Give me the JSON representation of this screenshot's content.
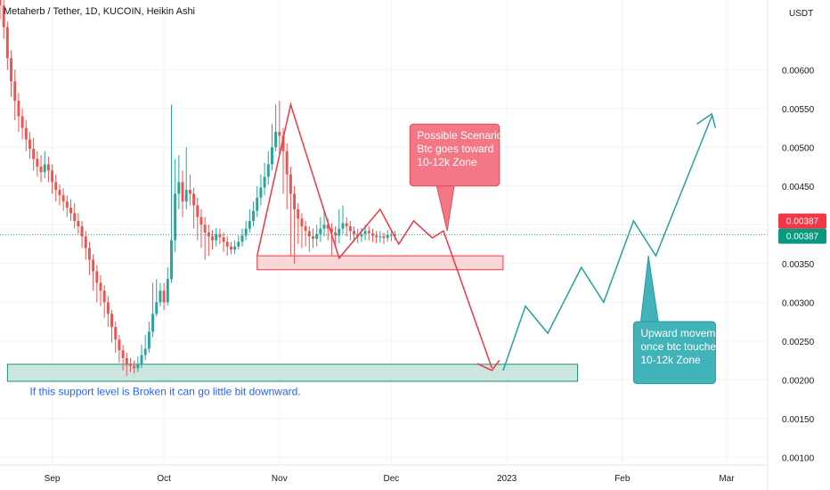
{
  "chart_data": {
    "type": "candlestick",
    "title": "Metaherb / Tether, 1D, KUCOIN, Heikin Ashi",
    "currency": "USDT",
    "ylim": [
      0.0009,
      0.0069
    ],
    "y_ticks": [
      "0.00100",
      "0.00150",
      "0.00200",
      "0.00250",
      "0.00300",
      "0.00350",
      "0.00400",
      "0.00450",
      "0.00500",
      "0.00550",
      "0.00600"
    ],
    "x_ticks": [
      {
        "label": "Sep",
        "date": "2022-09-01"
      },
      {
        "label": "Oct",
        "date": "2022-10-01"
      },
      {
        "label": "Nov",
        "date": "2022-11-01"
      },
      {
        "label": "Dec",
        "date": "2022-12-01"
      },
      {
        "label": "2023",
        "date": "2023-01-01"
      },
      {
        "label": "Feb",
        "date": "2023-02-01"
      },
      {
        "label": "Mar",
        "date": "2023-03-01"
      }
    ],
    "x_range": [
      "2022-08-18",
      "2023-03-12"
    ],
    "last_price": {
      "value": 0.00387,
      "label": "0.00387",
      "label2": "0.00387"
    },
    "candles_start": "2022-08-18",
    "candles": [
      [
        0.00692,
        0.00683,
        0.00705,
        0.00665
      ],
      [
        0.00683,
        0.00655,
        0.0069,
        0.0064
      ],
      [
        0.00655,
        0.00615,
        0.00662,
        0.006
      ],
      [
        0.00615,
        0.00585,
        0.00625,
        0.00565
      ],
      [
        0.00585,
        0.0056,
        0.006,
        0.00535
      ],
      [
        0.0056,
        0.0054,
        0.0057,
        0.0052
      ],
      [
        0.0054,
        0.00525,
        0.0055,
        0.0051
      ],
      [
        0.00525,
        0.0051,
        0.00535,
        0.00495
      ],
      [
        0.0051,
        0.00498,
        0.0052,
        0.00485
      ],
      [
        0.00498,
        0.00485,
        0.00512,
        0.0047
      ],
      [
        0.00485,
        0.00475,
        0.00495,
        0.00462
      ],
      [
        0.00475,
        0.00468,
        0.0049,
        0.00455
      ],
      [
        0.00468,
        0.00478,
        0.00495,
        0.0046
      ],
      [
        0.00478,
        0.0047,
        0.00488,
        0.00455
      ],
      [
        0.0047,
        0.00455,
        0.00478,
        0.0044
      ],
      [
        0.00455,
        0.00445,
        0.00465,
        0.0043
      ],
      [
        0.00445,
        0.00438,
        0.00452,
        0.00425
      ],
      [
        0.00438,
        0.0043,
        0.00447,
        0.00418
      ],
      [
        0.0043,
        0.00422,
        0.00438,
        0.0041
      ],
      [
        0.00422,
        0.00415,
        0.00433,
        0.00405
      ],
      [
        0.00415,
        0.00405,
        0.00428,
        0.00395
      ],
      [
        0.00405,
        0.00398,
        0.00415,
        0.00388
      ],
      [
        0.00398,
        0.00385,
        0.00405,
        0.0037
      ],
      [
        0.00385,
        0.0037,
        0.00392,
        0.00355
      ],
      [
        0.0037,
        0.00355,
        0.00378,
        0.00335
      ],
      [
        0.00355,
        0.0034,
        0.00362,
        0.00315
      ],
      [
        0.0034,
        0.00325,
        0.00348,
        0.003
      ],
      [
        0.00325,
        0.00315,
        0.00335,
        0.00295
      ],
      [
        0.00315,
        0.003,
        0.00322,
        0.0028
      ],
      [
        0.003,
        0.00285,
        0.00308,
        0.00268
      ],
      [
        0.00285,
        0.00268,
        0.0029,
        0.00248
      ],
      [
        0.00268,
        0.00252,
        0.00275,
        0.00235
      ],
      [
        0.00252,
        0.00238,
        0.00258,
        0.00222
      ],
      [
        0.00238,
        0.00228,
        0.00245,
        0.00212
      ],
      [
        0.00228,
        0.0022,
        0.00235,
        0.00205
      ],
      [
        0.0022,
        0.00218,
        0.00228,
        0.0021
      ],
      [
        0.00218,
        0.00215,
        0.00225,
        0.00208
      ],
      [
        0.00215,
        0.0022,
        0.0023,
        0.0021
      ],
      [
        0.0022,
        0.00232,
        0.00245,
        0.00215
      ],
      [
        0.00232,
        0.0024,
        0.00258,
        0.00225
      ],
      [
        0.0024,
        0.00262,
        0.00275,
        0.00235
      ],
      [
        0.00262,
        0.00285,
        0.00325,
        0.00255
      ],
      [
        0.00285,
        0.003,
        0.0033,
        0.00282
      ],
      [
        0.003,
        0.00315,
        0.00325,
        0.00295
      ],
      [
        0.00315,
        0.003,
        0.00325,
        0.0029
      ],
      [
        0.003,
        0.0033,
        0.00345,
        0.00296
      ],
      [
        0.0033,
        0.0038,
        0.00555,
        0.00325
      ],
      [
        0.0038,
        0.0044,
        0.00485,
        0.00365
      ],
      [
        0.0044,
        0.00455,
        0.0049,
        0.0042
      ],
      [
        0.00455,
        0.0043,
        0.0047,
        0.0041
      ],
      [
        0.0043,
        0.00445,
        0.005,
        0.0042
      ],
      [
        0.00445,
        0.0044,
        0.00465,
        0.00425
      ],
      [
        0.0044,
        0.00425,
        0.00448,
        0.00395
      ],
      [
        0.00425,
        0.0041,
        0.00435,
        0.0038
      ],
      [
        0.0041,
        0.004,
        0.0042,
        0.0037
      ],
      [
        0.004,
        0.0039,
        0.0041,
        0.00355
      ],
      [
        0.0039,
        0.00385,
        0.004,
        0.0036
      ],
      [
        0.00385,
        0.0038,
        0.00393,
        0.00368
      ],
      [
        0.0038,
        0.00388,
        0.00396,
        0.00372
      ],
      [
        0.00388,
        0.00384,
        0.00395,
        0.00375
      ],
      [
        0.00384,
        0.00378,
        0.0039,
        0.00365
      ],
      [
        0.00378,
        0.00372,
        0.00385,
        0.0036
      ],
      [
        0.00372,
        0.00368,
        0.00378,
        0.00362
      ],
      [
        0.00368,
        0.00372,
        0.0038,
        0.00362
      ],
      [
        0.00372,
        0.00378,
        0.00386,
        0.00368
      ],
      [
        0.00378,
        0.00386,
        0.00395,
        0.00372
      ],
      [
        0.00386,
        0.00395,
        0.00405,
        0.0038
      ],
      [
        0.00395,
        0.00405,
        0.0042,
        0.0039
      ],
      [
        0.00405,
        0.00418,
        0.0043,
        0.00398
      ],
      [
        0.00418,
        0.00435,
        0.0045,
        0.0041
      ],
      [
        0.00435,
        0.00448,
        0.00465,
        0.00425
      ],
      [
        0.00448,
        0.00462,
        0.0048,
        0.00438
      ],
      [
        0.00462,
        0.00478,
        0.00495,
        0.00452
      ],
      [
        0.00478,
        0.005,
        0.0053,
        0.0047
      ],
      [
        0.005,
        0.0052,
        0.00555,
        0.00495
      ],
      [
        0.0052,
        0.00515,
        0.0056,
        0.0049
      ],
      [
        0.00515,
        0.00495,
        0.00525,
        0.0044
      ],
      [
        0.00495,
        0.00465,
        0.00505,
        0.0042
      ],
      [
        0.00465,
        0.0044,
        0.00475,
        0.0036
      ],
      [
        0.0044,
        0.0042,
        0.0045,
        0.0035
      ],
      [
        0.0042,
        0.00408,
        0.00428,
        0.00375
      ],
      [
        0.00408,
        0.00398,
        0.00415,
        0.0037
      ],
      [
        0.00398,
        0.00392,
        0.00405,
        0.00372
      ],
      [
        0.00392,
        0.00385,
        0.00398,
        0.00365
      ],
      [
        0.00385,
        0.00382,
        0.00395,
        0.0037
      ],
      [
        0.00382,
        0.00388,
        0.004,
        0.00372
      ],
      [
        0.00388,
        0.00395,
        0.0041,
        0.00378
      ],
      [
        0.00395,
        0.004,
        0.0042,
        0.00385
      ],
      [
        0.004,
        0.00395,
        0.00408,
        0.0038
      ],
      [
        0.00395,
        0.0039,
        0.00402,
        0.0036
      ],
      [
        0.0039,
        0.00386,
        0.00398,
        0.00372
      ],
      [
        0.00386,
        0.00395,
        0.0042,
        0.00376
      ],
      [
        0.00395,
        0.00402,
        0.00425,
        0.00388
      ],
      [
        0.00402,
        0.00398,
        0.0041,
        0.00385
      ],
      [
        0.00398,
        0.00392,
        0.00405,
        0.0038
      ],
      [
        0.00392,
        0.00388,
        0.00398,
        0.00378
      ],
      [
        0.00388,
        0.00385,
        0.00395,
        0.00376
      ],
      [
        0.00385,
        0.00388,
        0.00396,
        0.00378
      ],
      [
        0.00388,
        0.00392,
        0.004,
        0.0038
      ],
      [
        0.00392,
        0.00389,
        0.00398,
        0.0038
      ],
      [
        0.00389,
        0.00386,
        0.00395,
        0.00378
      ],
      [
        0.00386,
        0.00384,
        0.00392,
        0.00376
      ],
      [
        0.00384,
        0.00385,
        0.00392,
        0.00377
      ],
      [
        0.00385,
        0.00383,
        0.0039,
        0.00375
      ],
      [
        0.00383,
        0.00387,
        0.00393,
        0.00378
      ],
      [
        0.00387,
        0.00386,
        0.00392,
        0.00379
      ],
      [
        0.00386,
        0.00387,
        0.00392,
        0.0038
      ]
    ],
    "zones": [
      {
        "name": "resistance",
        "date_from": "2022-10-26",
        "date_to": "2022-12-31",
        "y_from": 0.00342,
        "y_to": 0.0036,
        "fill": "#f7c9cc",
        "stroke": "#f23645"
      },
      {
        "name": "support",
        "date_from": "2022-08-20",
        "date_to": "2023-01-20",
        "y_from": 0.00198,
        "y_to": 0.0022,
        "fill": "#b9dcd4",
        "stroke": "#1e8c76"
      }
    ],
    "red_path": [
      [
        "2022-10-26",
        0.0036
      ],
      [
        "2022-11-04",
        0.00555
      ],
      [
        "2022-11-17",
        0.00357
      ],
      [
        "2022-11-28",
        0.0042
      ],
      [
        "2022-12-03",
        0.00375
      ],
      [
        "2022-12-07",
        0.00405
      ],
      [
        "2022-12-12",
        0.00383
      ],
      [
        "2022-12-15",
        0.00392
      ],
      [
        "2022-12-28",
        0.00215
      ]
    ],
    "red_arrowhead": [
      [
        "2022-12-24",
        0.00221
      ],
      [
        "2022-12-28",
        0.00212
      ],
      [
        "2022-12-30",
        0.00225
      ]
    ],
    "teal_path": [
      [
        "2022-12-31",
        0.00212
      ],
      [
        "2023-01-06",
        0.00295
      ],
      [
        "2023-01-12",
        0.0026
      ],
      [
        "2023-01-21",
        0.00345
      ],
      [
        "2023-01-27",
        0.003
      ],
      [
        "2023-02-04",
        0.00405
      ],
      [
        "2023-02-10",
        0.0036
      ],
      [
        "2023-02-25",
        0.0054
      ]
    ],
    "teal_arrowhead": [
      [
        "2023-02-21",
        0.0053
      ],
      [
        "2023-02-25",
        0.00543
      ],
      [
        "2023-02-26",
        0.00525
      ]
    ],
    "callouts": [
      {
        "name": "possible-scenario",
        "lines": [
          "Possible Scenario If",
          "Btc goes toward",
          "10-12k Zone"
        ],
        "fill": "#f47785",
        "stroke": "#e04a5a",
        "text_color": "#ffffff",
        "date_from": "2022-12-06",
        "date_to": "2022-12-30",
        "y_top": 0.0053,
        "y_bottom": 0.0045,
        "tail_date": "2022-12-16",
        "tail_y": 0.00392
      },
      {
        "name": "upward-movement",
        "lines": [
          "Upward movement",
          "once btc touches",
          "10-12k Zone"
        ],
        "fill": "#42b3b8",
        "stroke": "#2a9aa0",
        "text_color": "#ffffff",
        "date_from": "2023-02-04",
        "date_to": "2023-02-26",
        "y_top": 0.00275,
        "y_bottom": 0.00195,
        "tail_date": "2023-02-08",
        "tail_y": 0.0036
      }
    ],
    "annotations": [
      {
        "name": "support-note",
        "text": "If this support level is Broken it can go little bit downward.",
        "date": "2022-08-26",
        "y": 0.0018,
        "color": "#2962ff"
      }
    ],
    "colors": {
      "up": "#26a69a",
      "down": "#ef5350",
      "grid": "#f0f3fa",
      "last_price_line": "#26a69a",
      "last_price_red": "#f23645",
      "last_price_green": "#089981"
    }
  }
}
